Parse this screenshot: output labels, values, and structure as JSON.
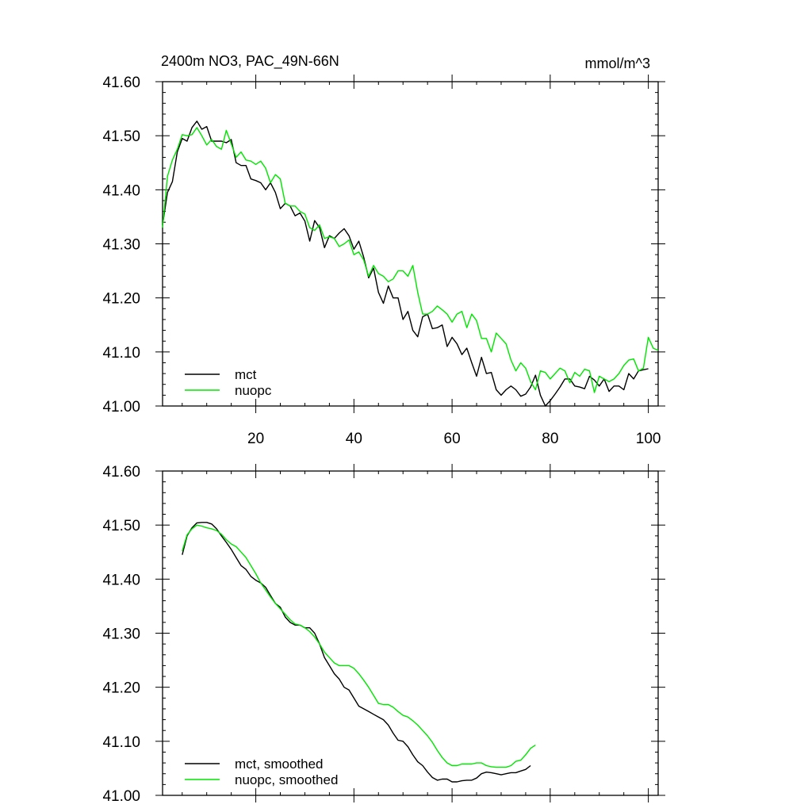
{
  "page": {
    "title_left": "2400m NO3, PAC_49N-66N",
    "title_right": "mmol/m^3"
  },
  "colors": {
    "mct": "#000000",
    "nuopc": "#00e600"
  },
  "chart_data": [
    {
      "type": "line",
      "title": "2400m NO3, PAC_49N-66N",
      "units": "mmol/m^3",
      "xlim": [
        1,
        102
      ],
      "ylim": [
        41.0,
        41.6
      ],
      "xticks": [
        20,
        40,
        60,
        80,
        100
      ],
      "yticks": [
        41.0,
        41.1,
        41.2,
        41.3,
        41.4,
        41.5,
        41.6
      ],
      "ytick_labels": [
        "41.00",
        "41.10",
        "41.20",
        "41.30",
        "41.40",
        "41.50",
        "41.60"
      ],
      "xtick_labels": [
        "20",
        "40",
        "60",
        "80",
        "100"
      ],
      "legend_position": "bottom-left",
      "series": [
        {
          "name": "mct",
          "color": "#000000",
          "x_start": 1,
          "values": [
            41.335,
            41.395,
            41.415,
            41.47,
            41.495,
            41.49,
            41.515,
            41.527,
            41.512,
            41.517,
            41.49,
            41.49,
            41.49,
            41.487,
            41.493,
            41.45,
            41.445,
            41.445,
            41.42,
            41.417,
            41.413,
            41.4,
            41.413,
            41.395,
            41.365,
            41.375,
            41.37,
            41.352,
            41.357,
            41.342,
            41.305,
            41.343,
            41.33,
            41.293,
            41.315,
            41.31,
            41.32,
            41.328,
            41.315,
            41.29,
            41.305,
            41.275,
            41.237,
            41.255,
            41.21,
            41.19,
            41.222,
            41.2,
            41.2,
            41.16,
            41.175,
            41.14,
            41.128,
            41.165,
            41.17,
            41.143,
            41.145,
            41.15,
            41.11,
            41.127,
            41.115,
            41.095,
            41.107,
            41.08,
            41.055,
            41.09,
            41.06,
            41.062,
            41.03,
            41.02,
            41.03,
            41.037,
            41.03,
            41.018,
            41.022,
            41.035,
            41.057,
            41.02,
            41.0,
            41.01,
            41.022,
            41.035,
            41.05,
            41.05,
            41.037,
            41.035,
            41.032,
            41.055,
            41.048,
            41.037,
            41.05,
            41.027,
            41.037,
            41.037,
            41.03,
            41.06,
            41.05,
            41.065,
            41.067,
            41.069
          ]
        },
        {
          "name": "nuopc",
          "color": "#00e600",
          "x_start": 1,
          "values": [
            41.33,
            41.425,
            41.455,
            41.475,
            41.502,
            41.5,
            41.502,
            41.515,
            41.5,
            41.483,
            41.493,
            41.48,
            41.475,
            41.51,
            41.485,
            41.46,
            41.47,
            41.455,
            41.453,
            41.447,
            41.453,
            41.44,
            41.413,
            41.428,
            41.42,
            41.375,
            41.37,
            41.37,
            41.36,
            41.355,
            41.33,
            41.325,
            41.335,
            41.31,
            41.313,
            41.31,
            41.295,
            41.3,
            41.307,
            41.28,
            41.285,
            41.27,
            41.24,
            41.26,
            41.245,
            41.24,
            41.23,
            41.235,
            41.25,
            41.25,
            41.24,
            41.26,
            41.21,
            41.17,
            41.17,
            41.175,
            41.185,
            41.178,
            41.17,
            41.155,
            41.17,
            41.175,
            41.145,
            41.17,
            41.158,
            41.125,
            41.125,
            41.1,
            41.135,
            41.125,
            41.115,
            41.085,
            41.065,
            41.08,
            41.07,
            41.045,
            41.03,
            41.065,
            41.062,
            41.05,
            41.06,
            41.07,
            41.065,
            41.043,
            41.062,
            41.055,
            41.068,
            41.065,
            41.025,
            41.055,
            41.05,
            41.045,
            41.05,
            41.06,
            41.075,
            41.085,
            41.087,
            41.065,
            41.07,
            41.127,
            41.107,
            41.103
          ]
        }
      ]
    },
    {
      "type": "line",
      "xlim": [
        1,
        102
      ],
      "ylim": [
        41.0,
        41.6
      ],
      "xticks": [
        20,
        40,
        60,
        80,
        100
      ],
      "yticks": [
        41.0,
        41.1,
        41.2,
        41.3,
        41.4,
        41.5,
        41.6
      ],
      "ytick_labels": [
        "41.00",
        "41.10",
        "41.20",
        "41.30",
        "41.40",
        "41.50",
        "41.60"
      ],
      "legend_position": "bottom-left",
      "series": [
        {
          "name": "mct, smoothed",
          "color": "#000000",
          "x_start": 5,
          "values": [
            41.445,
            41.48,
            41.495,
            41.504,
            41.505,
            41.505,
            41.502,
            41.493,
            41.48,
            41.468,
            41.455,
            41.44,
            41.425,
            41.418,
            41.405,
            41.398,
            41.393,
            41.385,
            41.37,
            41.355,
            41.348,
            41.33,
            41.32,
            41.315,
            41.315,
            41.31,
            41.31,
            41.3,
            41.28,
            41.255,
            41.24,
            41.225,
            41.215,
            41.2,
            41.195,
            41.18,
            41.165,
            41.16,
            41.155,
            41.15,
            41.145,
            41.14,
            41.13,
            41.115,
            41.102,
            41.1,
            41.09,
            41.075,
            41.062,
            41.055,
            41.043,
            41.033,
            41.028,
            41.03,
            41.03,
            41.025,
            41.025,
            41.027,
            41.028,
            41.028,
            41.032,
            41.04,
            41.043,
            41.042,
            41.04,
            41.038,
            41.04,
            41.042,
            41.042,
            41.045,
            41.048,
            41.055
          ]
        },
        {
          "name": "nuopc, smoothed",
          "color": "#00e600",
          "x_start": 5,
          "values": [
            41.452,
            41.482,
            41.493,
            41.5,
            41.498,
            41.495,
            41.493,
            41.49,
            41.483,
            41.473,
            41.465,
            41.46,
            41.45,
            41.44,
            41.425,
            41.41,
            41.393,
            41.38,
            41.367,
            41.355,
            41.345,
            41.335,
            41.325,
            41.317,
            41.315,
            41.31,
            41.303,
            41.293,
            41.28,
            41.265,
            41.255,
            41.245,
            41.24,
            41.24,
            41.24,
            41.235,
            41.225,
            41.213,
            41.2,
            41.185,
            41.17,
            41.168,
            41.168,
            41.163,
            41.155,
            41.148,
            41.145,
            41.138,
            41.13,
            41.12,
            41.11,
            41.098,
            41.083,
            41.07,
            41.06,
            41.055,
            41.055,
            41.058,
            41.058,
            41.058,
            41.06,
            41.06,
            41.055,
            41.053,
            41.052,
            41.052,
            41.052,
            41.055,
            41.063,
            41.065,
            41.075,
            41.087,
            41.093
          ]
        }
      ]
    }
  ]
}
